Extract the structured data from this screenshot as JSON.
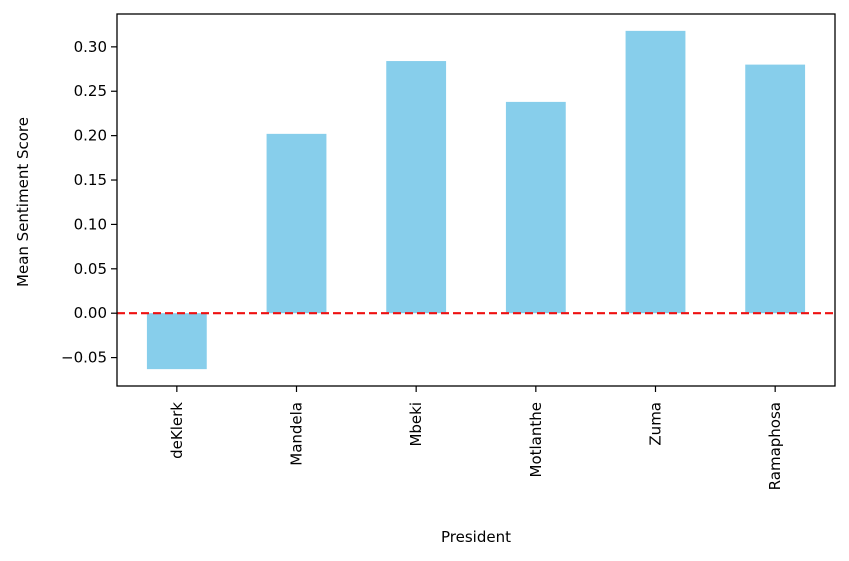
{
  "chart_data": {
    "type": "bar",
    "title": "",
    "xlabel": "President",
    "ylabel": "Mean Sentiment Score",
    "categories": [
      "deKlerk",
      "Mandela",
      "Mbeki",
      "Motlanthe",
      "Zuma",
      "Ramaphosa"
    ],
    "values": [
      -0.063,
      0.202,
      0.284,
      0.238,
      0.318,
      0.28
    ],
    "ylim": [
      -0.082,
      0.337
    ],
    "yticks": [
      -0.05,
      0.0,
      0.05,
      0.1,
      0.15,
      0.2,
      0.25,
      0.3
    ],
    "ytick_labels": [
      "−0.05",
      "0.00",
      "0.05",
      "0.10",
      "0.15",
      "0.20",
      "0.25",
      "0.30"
    ],
    "reference_line": {
      "y": 0.0,
      "style": "dashed",
      "color": "#ee1111"
    },
    "bar_color": "#87ceeb",
    "grid": false,
    "legend": "none"
  }
}
